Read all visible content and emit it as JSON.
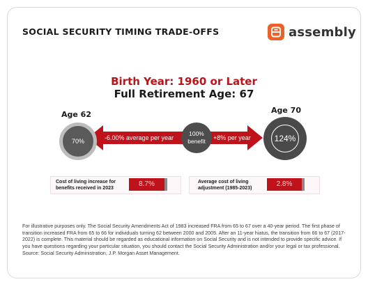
{
  "header": {
    "title": "SOCIAL SECURITY TIMING TRADE-OFFS",
    "brand_name": "assembly",
    "brand_color": "#e8622a"
  },
  "headline": {
    "birth_year": "Birth Year: 1960 or Later",
    "fra": "Full Retirement Age: 67"
  },
  "diagram": {
    "left_age_label": "Age 62",
    "left_value": "70%",
    "center_value_line1": "100%",
    "center_value_line2": "benefit",
    "right_age_label": "Age 70",
    "right_value": "124%",
    "left_arrow_text": "-6.00% average per year",
    "right_arrow_text": "+8% per year",
    "arrow_color": "#c0121a"
  },
  "stats": [
    {
      "label_line1": "Cost of living increase for",
      "label_line2": "benefits received in 2023",
      "value": "8.7%"
    },
    {
      "label_line1": "Average cost of living",
      "label_line2": "adjustment (1985-2023)",
      "value": "2.8%"
    }
  ],
  "footnote": {
    "text": "For illustrative purposes only. The Social Security Amendments Act of 1983 increased FRA from 65 to 67 over a 40-year period. The first phase of transition increased FRA from 65 to 66 for individuals turning 62 between 2000 and 2005. After an 11-year hiatus, the transition from 66 to 67 (2017-2022) is complete. This material should be regarded as educational information on Social Security and is not intended to provide specific advice. If you have questions regarding your particular situation, you should contact the Social Security Administration and/or your legal or tax professional.",
    "source": "Source: Social Security Administration, J.P. Morgan Asset Management."
  }
}
